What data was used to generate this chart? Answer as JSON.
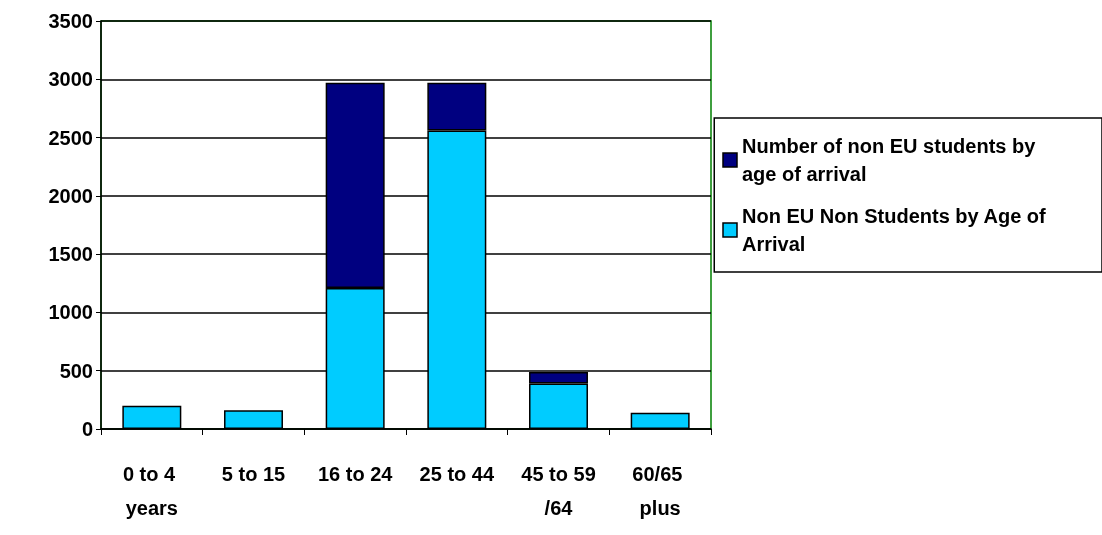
{
  "chart_data": {
    "type": "bar",
    "stacked": true,
    "categories": [
      "0 to 4 years",
      "5 to 15",
      "16 to 24",
      "25 to 44",
      "45 to 59/64",
      "60/65 plus"
    ],
    "series": [
      {
        "name": "Non EU Non Students by Age of Arrival",
        "color": "#00ccff",
        "values": [
          200,
          160,
          1210,
          2560,
          390,
          140
        ]
      },
      {
        "name": "Number of non EU students by age of arrival",
        "color": "#000080",
        "values": [
          null,
          null,
          1760,
          410,
          100,
          null
        ]
      }
    ],
    "ylim": [
      0,
      3500
    ],
    "yticks": [
      0,
      500,
      1000,
      1500,
      2000,
      2500,
      3000,
      3500
    ],
    "grid": "y",
    "legend": "right"
  }
}
